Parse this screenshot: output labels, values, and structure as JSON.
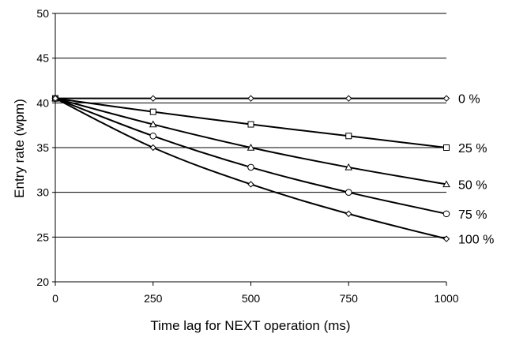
{
  "chart_data": {
    "type": "line",
    "title": "",
    "xlabel": "Time lag for NEXT operation (ms)",
    "ylabel": "Entry rate (wpm)",
    "x": [
      0,
      250,
      500,
      750,
      1000
    ],
    "xticks": [
      0,
      250,
      500,
      750,
      1000
    ],
    "xtick_labels": [
      "0",
      "250",
      "500",
      "750",
      "1000"
    ],
    "xlim": [
      0,
      1000
    ],
    "ylim": [
      20,
      50
    ],
    "yticks": [
      20,
      25,
      30,
      35,
      40,
      45,
      50
    ],
    "ytick_labels": [
      "20",
      "25",
      "30",
      "35",
      "40",
      "45",
      "50"
    ],
    "grid": true,
    "series": [
      {
        "name": "0 %",
        "marker": "diamond",
        "values": [
          40.5,
          40.5,
          40.5,
          40.5,
          40.5
        ]
      },
      {
        "name": "25 %",
        "marker": "square",
        "values": [
          40.5,
          39.0,
          37.6,
          36.3,
          35.0
        ]
      },
      {
        "name": "50 %",
        "marker": "triangle",
        "values": [
          40.5,
          37.6,
          35.0,
          32.8,
          30.9
        ]
      },
      {
        "name": "75 %",
        "marker": "circle",
        "values": [
          40.5,
          36.3,
          32.8,
          30.0,
          27.6
        ]
      },
      {
        "name": "100 %",
        "marker": "diamond",
        "values": [
          40.5,
          35.0,
          30.9,
          27.6,
          24.8
        ]
      }
    ],
    "colors": {
      "line": "#000000",
      "marker_fill": "#ffffff",
      "background": "#ffffff"
    }
  }
}
